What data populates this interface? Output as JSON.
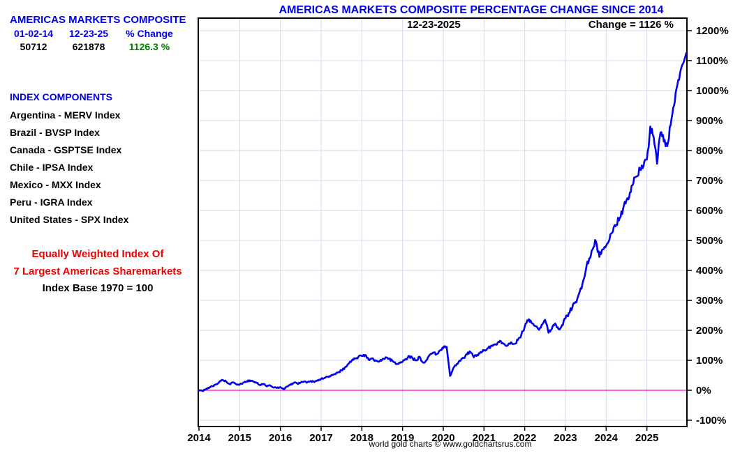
{
  "sidebar": {
    "title": "AMERICAS MARKETS COMPOSITE",
    "stats": {
      "col1_header": "01-02-14",
      "col2_header": "12-23-25",
      "col3_header": "% Change",
      "col1_value": "50712",
      "col2_value": "621878",
      "col3_value": "1126.3 %"
    },
    "components_header": "INDEX COMPONENTS",
    "components": [
      "Argentina - MERV Index",
      "Brazil - BVSP Index",
      "Canada - GSPTSE Index",
      "Chile - IPSA Index",
      "Mexico - MXX Index",
      "Peru - IGRA Index",
      "United States - SPX Index"
    ],
    "footnote_red_line1": "Equally Weighted Index Of",
    "footnote_red_line2": "7 Largest Americas Sharemarkets",
    "footnote_black": "Index Base 1970 = 100"
  },
  "chart": {
    "title": "AMERICAS MARKETS COMPOSITE PERCENTAGE CHANGE SINCE 2014",
    "date_label": "12-23-2025",
    "change_label": "Change = 1126 %"
  },
  "footer": "world gold charts © www.goldchartsrus.com",
  "colors": {
    "blue_text": "#0000ee",
    "green_text": "#008000",
    "red_text": "#ee0000"
  },
  "chart_data": {
    "type": "line",
    "title": "AMERICAS MARKETS COMPOSITE PERCENTAGE CHANGE SINCE 2014",
    "xlabel": "",
    "ylabel": "",
    "x_ticks": [
      2014,
      2015,
      2016,
      2017,
      2018,
      2019,
      2020,
      2021,
      2022,
      2023,
      2024,
      2025
    ],
    "y_ticks": [
      1200,
      1100,
      1000,
      900,
      800,
      700,
      600,
      500,
      400,
      300,
      200,
      100,
      0,
      -100
    ],
    "y_tick_suffix": "%",
    "ylim": [
      -123,
      1244
    ],
    "xlim": [
      2014,
      2026.03
    ],
    "grid": true,
    "grid_color": "#d2d9ec",
    "line_color": "#0000ee",
    "zero_line": {
      "value": 0,
      "color": "#ff00c8"
    },
    "legend_position": "none",
    "annotations": [
      "12-23-2025",
      "Change = 1126 %"
    ],
    "series": [
      {
        "name": "Americas Markets Composite percent change since 2014",
        "x_start_year": 2014,
        "points_per_year": 12,
        "monthly_pct_change": [
          0,
          -2,
          3,
          8,
          14,
          20,
          28,
          34,
          29,
          21,
          26,
          20,
          19,
          25,
          30,
          33,
          29,
          25,
          17,
          21,
          13,
          16,
          9,
          8,
          11,
          3,
          13,
          18,
          25,
          22,
          26,
          29,
          27,
          31,
          27,
          34,
          38,
          41,
          45,
          50,
          54,
          60,
          67,
          76,
          88,
          98,
          106,
          112,
          115,
          118,
          102,
          106,
          100,
          95,
          103,
          110,
          105,
          98,
          88,
          92,
          95,
          105,
          114,
          106,
          100,
          112,
          93,
          100,
          118,
          126,
          120,
          132,
          141,
          145,
          48,
          75,
          88,
          98,
          108,
          120,
          128,
          110,
          118,
          128,
          132,
          140,
          147,
          152,
          158,
          163,
          155,
          150,
          160,
          155,
          168,
          185,
          212,
          232,
          225,
          215,
          204,
          218,
          235,
          192,
          205,
          223,
          204,
          218,
          240,
          258,
          275,
          295,
          322,
          355,
          400,
          440,
          470,
          497,
          445,
          470,
          482,
          505,
          530,
          552,
          575,
          606,
          635,
          660,
          690,
          714,
          735,
          748,
          770,
          880,
          845,
          756,
          860,
          830,
          815,
          885,
          950,
          1020,
          1070,
          1100
        ],
        "final_point": {
          "x_year": 2025.97,
          "value": 1126.3
        }
      }
    ]
  }
}
